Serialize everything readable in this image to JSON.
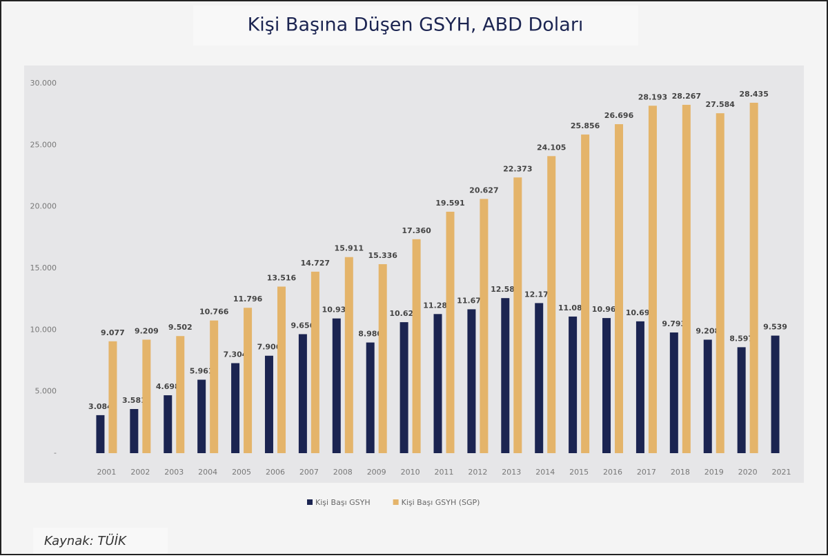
{
  "chart_data": {
    "type": "bar",
    "title": "Kişi Başına Düşen GSYH, ABD Doları",
    "categories": [
      "2001",
      "2002",
      "2003",
      "2004",
      "2005",
      "2006",
      "2007",
      "2008",
      "2009",
      "2010",
      "2011",
      "2012",
      "2013",
      "2014",
      "2015",
      "2016",
      "2017",
      "2018",
      "2019",
      "2020",
      "2021"
    ],
    "series": [
      {
        "name": "Kişi Başı GSYH",
        "color": "#1b2451",
        "values": [
          3084,
          3581,
          4698,
          5961,
          7304,
          7906,
          9656,
          10931,
          8980,
          10629,
          11289,
          11675,
          12582,
          12178,
          11085,
          10964,
          10696,
          9793,
          9208,
          8597,
          9539
        ],
        "value_labels": [
          "3.084",
          "3.581",
          "4.698",
          "5.961",
          "7.304",
          "7.906",
          "9.656",
          "10.931",
          "8.980",
          "10.629",
          "11.289",
          "11.675",
          "12.582",
          "12.178",
          "11.085",
          "10.964",
          "10.696",
          "9.793",
          "9.208",
          "8.597",
          "9.539"
        ]
      },
      {
        "name": "Kişi Başı GSYH (SGP)",
        "color": "#e4b46a",
        "values": [
          9077,
          9209,
          9502,
          10766,
          11796,
          13516,
          14727,
          15911,
          15336,
          17360,
          19591,
          20627,
          22373,
          24105,
          25856,
          26696,
          28193,
          28267,
          27584,
          28435,
          null
        ],
        "value_labels": [
          "9.077",
          "9.209",
          "9.502",
          "10.766",
          "11.796",
          "13.516",
          "14.727",
          "15.911",
          "15.336",
          "17.360",
          "19.591",
          "20.627",
          "22.373",
          "24.105",
          "25.856",
          "26.696",
          "28.193",
          "28.267",
          "27.584",
          "28.435",
          null
        ]
      }
    ],
    "ylim": [
      0,
      30000
    ],
    "yticks": [
      {
        "value": 0,
        "label": "-"
      },
      {
        "value": 5000,
        "label": "5.000"
      },
      {
        "value": 10000,
        "label": "10.000"
      },
      {
        "value": 15000,
        "label": "15.000"
      },
      {
        "value": 20000,
        "label": "20.000"
      },
      {
        "value": 25000,
        "label": "25.000"
      },
      {
        "value": 30000,
        "label": "30.000"
      }
    ],
    "legend": "bottom",
    "source": "Kaynak: TÜİK"
  }
}
